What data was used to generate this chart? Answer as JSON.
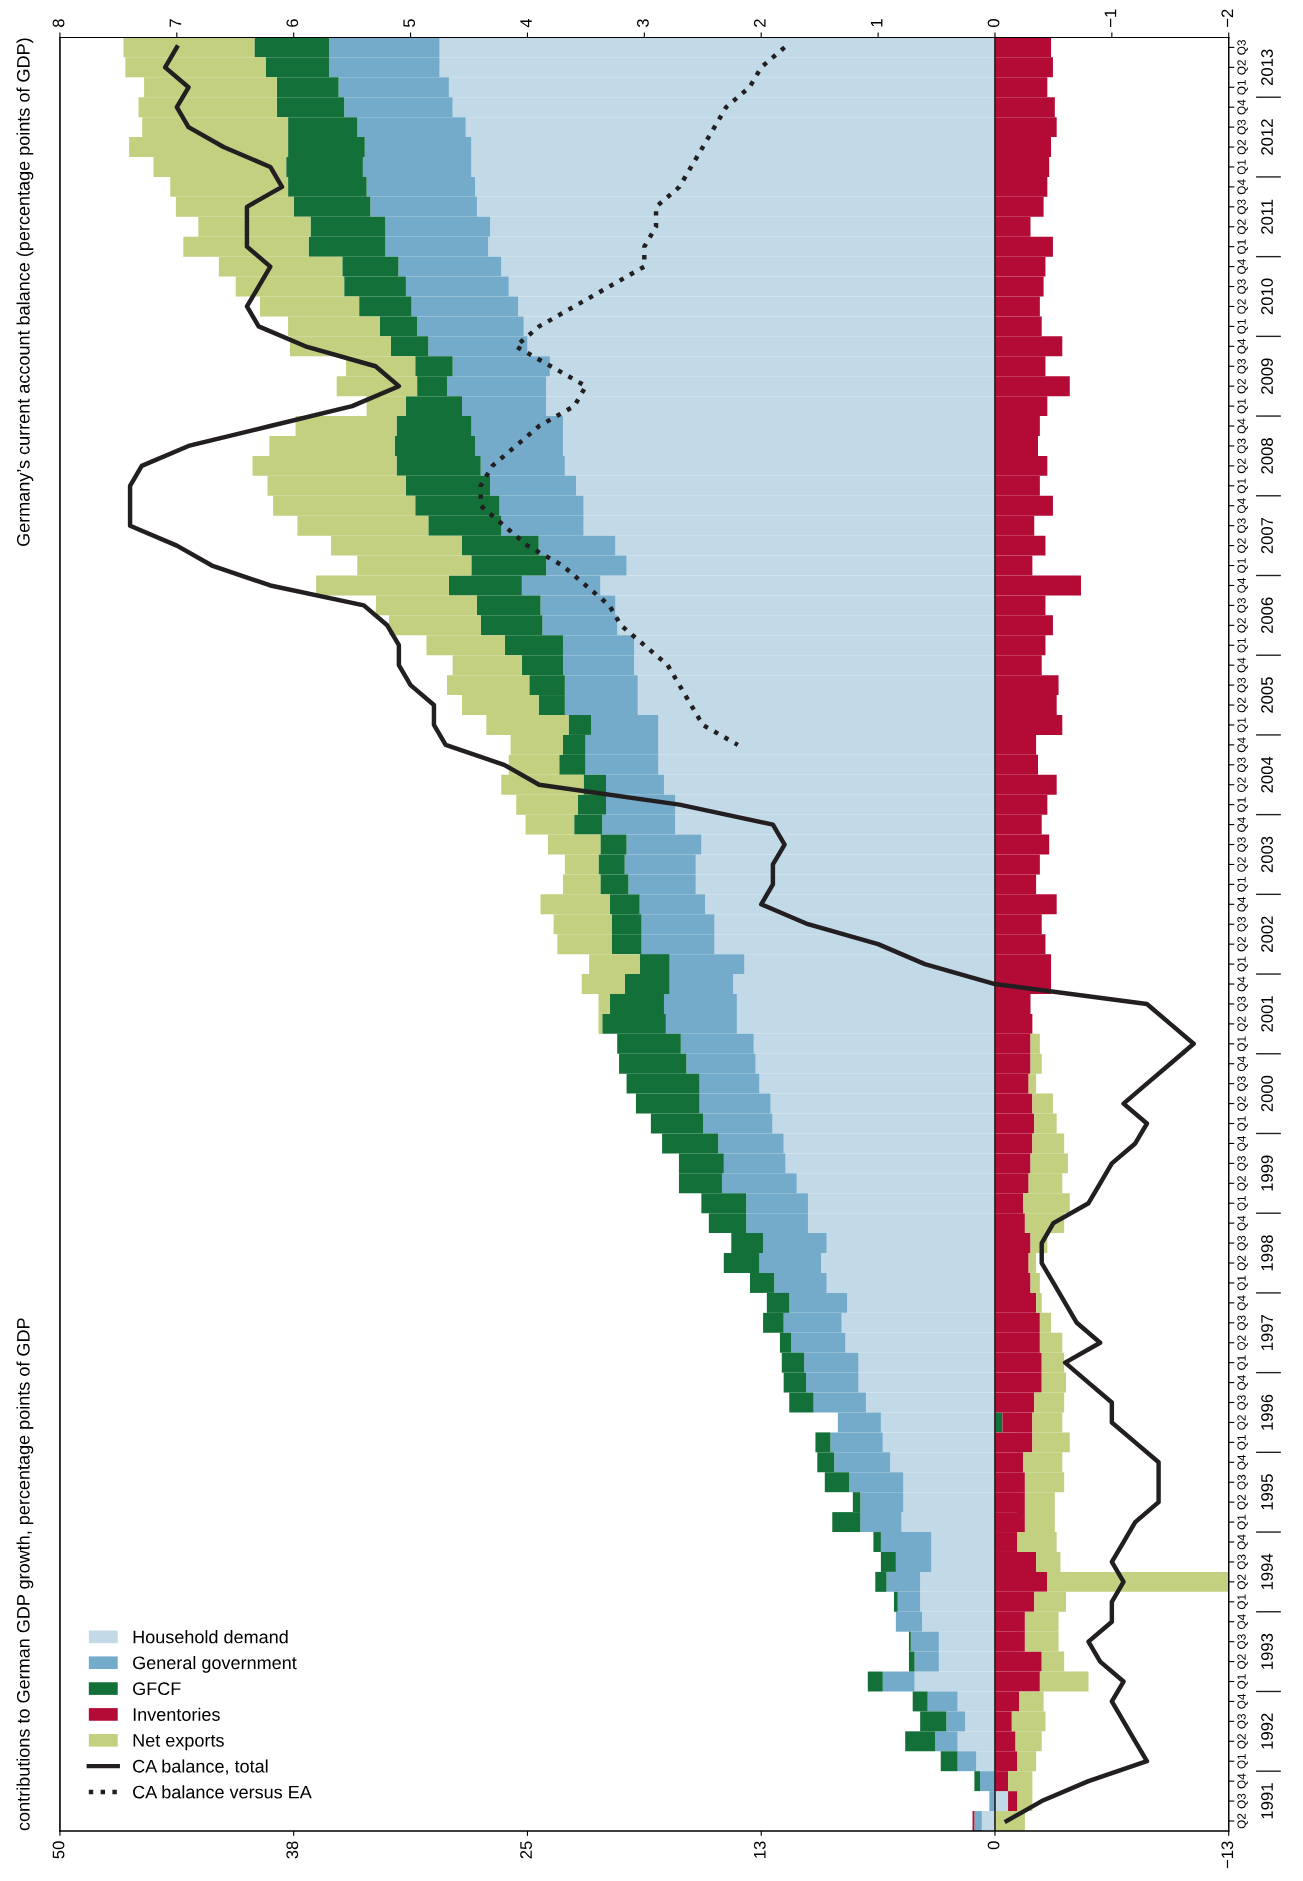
{
  "chart_data": {
    "type": "bar",
    "orientation": "horizontal",
    "stacked": true,
    "title": "contributions to German GDP growth, percentage points of GDP",
    "x2label": "Germany’s current account balance (percentage points of GDP)",
    "categories": [
      "Q3",
      "Q2",
      "Q1",
      "Q4",
      "Q3",
      "Q2",
      "Q1",
      "Q4",
      "Q3",
      "Q2",
      "Q1",
      "Q4",
      "Q3",
      "Q2",
      "Q1",
      "Q4",
      "Q3",
      "Q2",
      "Q1",
      "Q4",
      "Q3",
      "Q2",
      "Q1",
      "Q4",
      "Q3",
      "Q2",
      "Q1",
      "Q4",
      "Q3",
      "Q2",
      "Q1",
      "Q4",
      "Q3",
      "Q2",
      "Q1",
      "Q4",
      "Q3",
      "Q2",
      "Q1",
      "Q4",
      "Q3",
      "Q2",
      "Q1",
      "Q4",
      "Q3",
      "Q2",
      "Q1",
      "Q4",
      "Q3",
      "Q2",
      "Q1",
      "Q4",
      "Q3",
      "Q2",
      "Q1",
      "Q4",
      "Q3",
      "Q2",
      "Q1",
      "Q4",
      "Q3",
      "Q2",
      "Q1",
      "Q4",
      "Q3",
      "Q2",
      "Q1",
      "Q4",
      "Q3",
      "Q2",
      "Q1",
      "Q4",
      "Q3",
      "Q2",
      "Q1",
      "Q4",
      "Q3",
      "Q2",
      "Q1",
      "Q4",
      "Q3",
      "Q2",
      "Q1",
      "Q4",
      "Q3",
      "Q2",
      "Q1",
      "Q4",
      "Q3",
      "Q2"
    ],
    "annotations": [
      "2013",
      "2012",
      "2011",
      "2010",
      "2009",
      "2008",
      "2007",
      "2006",
      "2005",
      "2004",
      "2003",
      "2002",
      "2001",
      "2000",
      "1999",
      "1998",
      "1997",
      "1996",
      "1995",
      "1994",
      "1993",
      "1992",
      "1991"
    ],
    "xlim": [
      50,
      -12.5
    ],
    "xticks": [
      50,
      {
        "value": 37.5,
        "label": "38"
      },
      25,
      {
        "value": 12.5,
        "label": "13"
      },
      0,
      {
        "value": -12.5,
        "label": "−13"
      }
    ],
    "x2lim": [
      8,
      -2
    ],
    "x2ticks": [
      8,
      7,
      6,
      5,
      4,
      3,
      2,
      1,
      0,
      {
        "value": -1,
        "label": "−1"
      },
      {
        "value": -2,
        "label": "−2"
      }
    ],
    "ref_lines": [
      {
        "axis": "x",
        "value": 0,
        "color": "#231f20"
      }
    ],
    "legend": "bottom left",
    "series": [
      {
        "name": "Household demand",
        "type": "bar",
        "color": "#c2d9e7",
        "values": [
          29.7,
          29.7,
          29.2,
          29.0,
          28.3,
          28.0,
          28.0,
          27.8,
          27.7,
          27.0,
          27.1,
          26.4,
          26.0,
          25.5,
          25.2,
          25.0,
          23.8,
          24.0,
          24.0,
          23.1,
          23.1,
          23.0,
          22.4,
          22.0,
          22.0,
          20.3,
          19.7,
          21.1,
          20.3,
          20.2,
          19.3,
          19.3,
          19.1,
          19.1,
          18.0,
          18.0,
          18.0,
          17.7,
          17.1,
          17.1,
          15.7,
          16.0,
          16.0,
          15.5,
          15.0,
          15.0,
          13.4,
          14.0,
          13.8,
          13.8,
          12.9,
          12.8,
          12.6,
          12.0,
          11.9,
          11.3,
          11.2,
          10.6,
          10.0,
          10.0,
          9.0,
          9.3,
          9.0,
          7.9,
          8.2,
          8.0,
          7.3,
          7.3,
          6.9,
          6.1,
          6.0,
          5.6,
          4.9,
          4.9,
          5.0,
          3.4,
          3.4,
          4.0,
          4.0,
          3.9,
          3.0,
          3.0,
          4.3,
          2.0,
          1.6,
          2.0,
          1.0,
          0,
          -0.7,
          0.7
        ]
      },
      {
        "name": "General government",
        "type": "bar",
        "color": "#75abca",
        "values": [
          5.9,
          5.9,
          5.9,
          5.8,
          5.8,
          5.7,
          5.8,
          5.8,
          5.7,
          5.6,
          5.5,
          5.5,
          5.5,
          5.7,
          5.7,
          5.3,
          5.2,
          5.3,
          4.5,
          4.9,
          4.7,
          4.5,
          4.6,
          4.5,
          4.4,
          4.1,
          4.3,
          4.2,
          4.0,
          4.0,
          3.8,
          3.8,
          3.9,
          3.9,
          3.6,
          3.9,
          3.9,
          3.1,
          3.7,
          3.9,
          4.0,
          3.8,
          3.6,
          3.5,
          3.9,
          3.9,
          4.0,
          3.4,
          3.9,
          3.8,
          3.9,
          3.7,
          3.2,
          3.8,
          3.7,
          3.5,
          3.3,
          4.0,
          3.3,
          3.3,
          3.4,
          3.3,
          2.8,
          3.1,
          3.1,
          2.9,
          2.9,
          2.8,
          2.8,
          2.3,
          2.8,
          3.0,
          2.9,
          2.3,
          2.2,
          2.7,
          1.9,
          1.8,
          1.2,
          1.4,
          1.5,
          1.3,
          1.7,
          1.6,
          1.0,
          1.2,
          1.0,
          0.8,
          0.3,
          0.4
        ]
      },
      {
        "name": "GFCF",
        "type": "bar",
        "color": "#127038",
        "values": [
          4.0,
          3.4,
          3.3,
          3.6,
          3.7,
          4.1,
          4.1,
          4.2,
          4.1,
          4.0,
          4.1,
          3.0,
          3.3,
          2.8,
          2.0,
          2.0,
          2.0,
          1.6,
          3.0,
          4.0,
          4.3,
          4.5,
          4.5,
          4.5,
          3.9,
          4.1,
          4.0,
          3.9,
          3.4,
          3.3,
          3.1,
          2.2,
          1.9,
          1.4,
          1.2,
          1.2,
          1.4,
          1.2,
          1.5,
          1.5,
          1.4,
          1.4,
          1.5,
          1.6,
          1.6,
          1.6,
          1.6,
          2.4,
          2.9,
          3.4,
          3.4,
          3.6,
          3.9,
          3.4,
          2.8,
          3.0,
          2.4,
          2.3,
          2.4,
          2.0,
          1.7,
          1.9,
          1.3,
          1.2,
          1.1,
          0.6,
          1.2,
          1.2,
          1.3,
          -0.4,
          0.8,
          0.9,
          1.3,
          0.4,
          1.5,
          0.4,
          0.8,
          0.6,
          0.2,
          0,
          0.1,
          0.3,
          0.8,
          0.8,
          1.4,
          1.6,
          0.9,
          0.3,
          0,
          0
        ]
      },
      {
        "name": "Inventories",
        "type": "bar",
        "color": "#b40a36",
        "values": [
          -3.0,
          -3.1,
          -2.8,
          -3.2,
          -3.3,
          -3.0,
          -2.9,
          -2.8,
          -2.6,
          -1.9,
          -3.1,
          -2.7,
          -2.6,
          -2.4,
          -2.5,
          -3.6,
          -2.7,
          -4.0,
          -2.8,
          -2.4,
          -2.3,
          -2.8,
          -2.4,
          -3.1,
          -2.1,
          -2.7,
          -2.0,
          -4.6,
          -2.7,
          -3.1,
          -2.7,
          -2.5,
          -3.4,
          -3.3,
          -3.6,
          -2.2,
          -2.3,
          -3.3,
          -2.8,
          -2.5,
          -2.9,
          -2.4,
          -2.2,
          -3.3,
          -2.5,
          -2.7,
          -3.0,
          -3.0,
          -1.9,
          -2.0,
          -1.9,
          -1.9,
          -1.8,
          -2.0,
          -2.1,
          -2.0,
          -1.9,
          -1.8,
          -1.5,
          -1.6,
          -1.9,
          -1.8,
          -1.9,
          -2.2,
          -2.4,
          -2.4,
          -2.5,
          -2.5,
          -2.1,
          -1.6,
          -2.0,
          -1.5,
          -1.6,
          -1.6,
          -1.6,
          -1.2,
          -2.2,
          -2.8,
          -2.1,
          -1.6,
          -1.6,
          -2.5,
          -2.4,
          -1.3,
          -0.9,
          -1.1,
          -1.2,
          -0.7,
          -0.5,
          0.1
        ]
      },
      {
        "name": "Net exports",
        "type": "bar",
        "color": "#c2d07f",
        "values": [
          7.0,
          7.5,
          7.1,
          7.4,
          7.8,
          8.5,
          7.1,
          6.3,
          6.3,
          6.0,
          6.7,
          6.6,
          5.8,
          5.3,
          4.9,
          5.4,
          3.7,
          4.3,
          2.1,
          5.4,
          6.7,
          7.7,
          7.4,
          7.6,
          7.0,
          7.0,
          6.1,
          7.1,
          5.4,
          4.9,
          4.2,
          3.7,
          4.4,
          4.1,
          4.4,
          2.8,
          2.7,
          4.4,
          3.3,
          2.6,
          2.8,
          1.8,
          2.0,
          3.7,
          3.1,
          2.9,
          2.7,
          2.3,
          0.6,
          0.2,
          -0.5,
          -0.6,
          -0.4,
          -1.1,
          -1.2,
          -1.7,
          -2.0,
          -1.8,
          -2.5,
          -2.1,
          -0.9,
          -0.4,
          -0.5,
          -0.3,
          -0.6,
          -1.2,
          -1.2,
          -1.3,
          -1.6,
          -1.6,
          -2.0,
          -2.1,
          -2.1,
          -1.6,
          -1.6,
          -2.1,
          -1.3,
          -9.7,
          -1.7,
          -1.8,
          -1.8,
          -1.2,
          -2.6,
          -1.3,
          -1.8,
          -1.4,
          -1.0,
          -1.3,
          -0.8,
          -1.6
        ]
      },
      {
        "name": "CA balance, total",
        "type": "line",
        "axis": "x2",
        "line_style": "solid",
        "color": "#231f20",
        "values": [
          7.0,
          7.1,
          6.9,
          7.0,
          6.9,
          6.6,
          6.2,
          6.1,
          6.4,
          6.4,
          6.4,
          6.2,
          6.3,
          6.4,
          6.3,
          5.9,
          5.3,
          5.1,
          5.5,
          6.2,
          6.9,
          7.3,
          7.4,
          7.4,
          7.4,
          7.0,
          6.7,
          6.2,
          5.4,
          5.2,
          5.1,
          5.1,
          5.0,
          4.8,
          4.8,
          4.7,
          4.2,
          3.9,
          2.7,
          1.9,
          1.8,
          1.9,
          1.9,
          2.0,
          1.6,
          1.0,
          0.6,
          0.0,
          -1.3,
          -1.5,
          -1.7,
          -1.5,
          -1.3,
          -1.1,
          -1.3,
          -1.2,
          -1.0,
          -0.9,
          -0.8,
          -0.5,
          -0.4,
          -0.4,
          -0.5,
          -0.6,
          -0.7,
          -0.9,
          -0.6,
          -0.8,
          -1.0,
          -1.0,
          -1.2,
          -1.4,
          -1.4,
          -1.4,
          -1.2,
          -1.1,
          -1.0,
          -1.1,
          -1.0,
          -1.0,
          -0.8,
          -0.9,
          -1.1,
          -1.0,
          -1.1,
          -1.2,
          -1.3,
          -0.8,
          -0.4,
          -0.1
        ]
      },
      {
        "name": "CA balance versus EA",
        "type": "line",
        "axis": "x2",
        "line_style": "dotted",
        "color": "#231f20",
        "values": [
          1.8,
          2.0,
          2.1,
          2.3,
          2.4,
          2.5,
          2.6,
          2.7,
          2.9,
          2.9,
          3.0,
          3.0,
          3.3,
          3.6,
          3.9,
          4.1,
          3.8,
          3.5,
          3.6,
          3.9,
          4.1,
          4.3,
          4.4,
          4.4,
          4.2,
          4.0,
          3.7,
          3.5,
          3.3,
          3.2,
          3.0,
          2.8,
          2.7,
          2.6,
          2.5,
          2.2,
          null,
          null,
          null,
          null,
          null,
          null,
          null,
          null,
          null,
          null,
          null,
          null,
          null,
          null,
          null,
          null,
          null,
          null,
          null,
          null,
          null,
          null,
          null,
          null,
          null,
          null,
          null,
          null,
          null,
          null,
          null,
          null,
          null,
          null,
          null,
          null,
          null,
          null,
          null,
          null,
          null,
          null,
          null,
          null,
          null,
          null,
          null,
          null,
          null,
          null,
          null,
          null,
          null,
          null
        ]
      }
    ]
  }
}
